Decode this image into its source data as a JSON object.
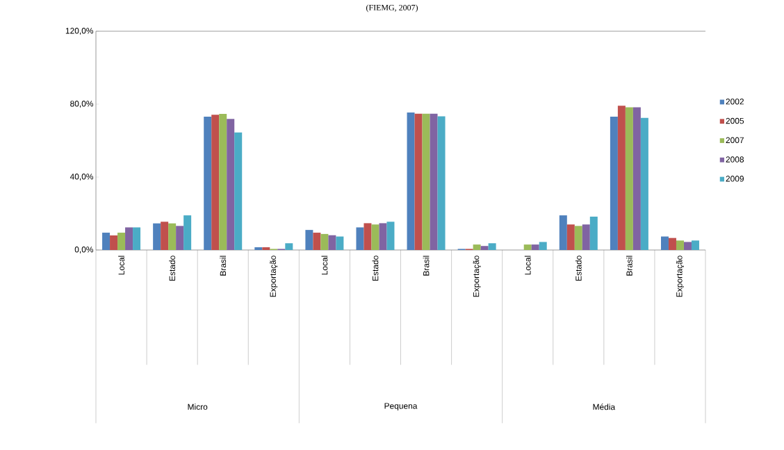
{
  "chart_data": {
    "type": "bar",
    "categories": [
      "Local",
      "Estado",
      "Brasil",
      "Exportação",
      "Local",
      "Estado",
      "Brasil",
      "Exportação",
      "Local",
      "Estado",
      "Brasil",
      "Exportação"
    ],
    "series": [
      {
        "name": "2002",
        "color": "#4f81bd",
        "values": [
          9.5,
          14.6,
          73.1,
          1.5,
          11.0,
          12.4,
          75.4,
          0.6,
          null,
          19.0,
          73.1,
          7.4
        ]
      },
      {
        "name": "2005",
        "color": "#c0504d",
        "values": [
          8.0,
          15.5,
          74.2,
          1.5,
          9.5,
          14.7,
          74.8,
          0.6,
          null,
          14.0,
          79.1,
          6.6
        ]
      },
      {
        "name": "2007",
        "color": "#9bbb59",
        "values": [
          9.5,
          14.6,
          74.7,
          0.6,
          8.8,
          14.0,
          74.8,
          3.0,
          3.0,
          13.2,
          78.3,
          5.2
        ]
      },
      {
        "name": "2008",
        "color": "#8064a2",
        "values": [
          12.4,
          13.2,
          71.9,
          0.6,
          8.1,
          14.7,
          74.8,
          2.2,
          3.0,
          14.0,
          78.3,
          4.4
        ]
      },
      {
        "name": "2009",
        "color": "#4bacc6",
        "values": [
          12.4,
          19.0,
          64.5,
          3.7,
          7.4,
          15.5,
          73.3,
          3.7,
          4.4,
          18.3,
          72.5,
          5.2
        ]
      }
    ],
    "ylim": [
      0,
      120
    ],
    "yticks": [
      {
        "value": 0,
        "label": "0,0%"
      },
      {
        "value": 40,
        "label": "40,0%"
      },
      {
        "value": 80,
        "label": "80,0%"
      },
      {
        "value": 120,
        "label": "120,0%"
      }
    ],
    "grid": false,
    "legend": "right",
    "annotations": [
      "(FIEMG, 2007)",
      "Micro",
      "Pequena",
      "Média"
    ]
  }
}
